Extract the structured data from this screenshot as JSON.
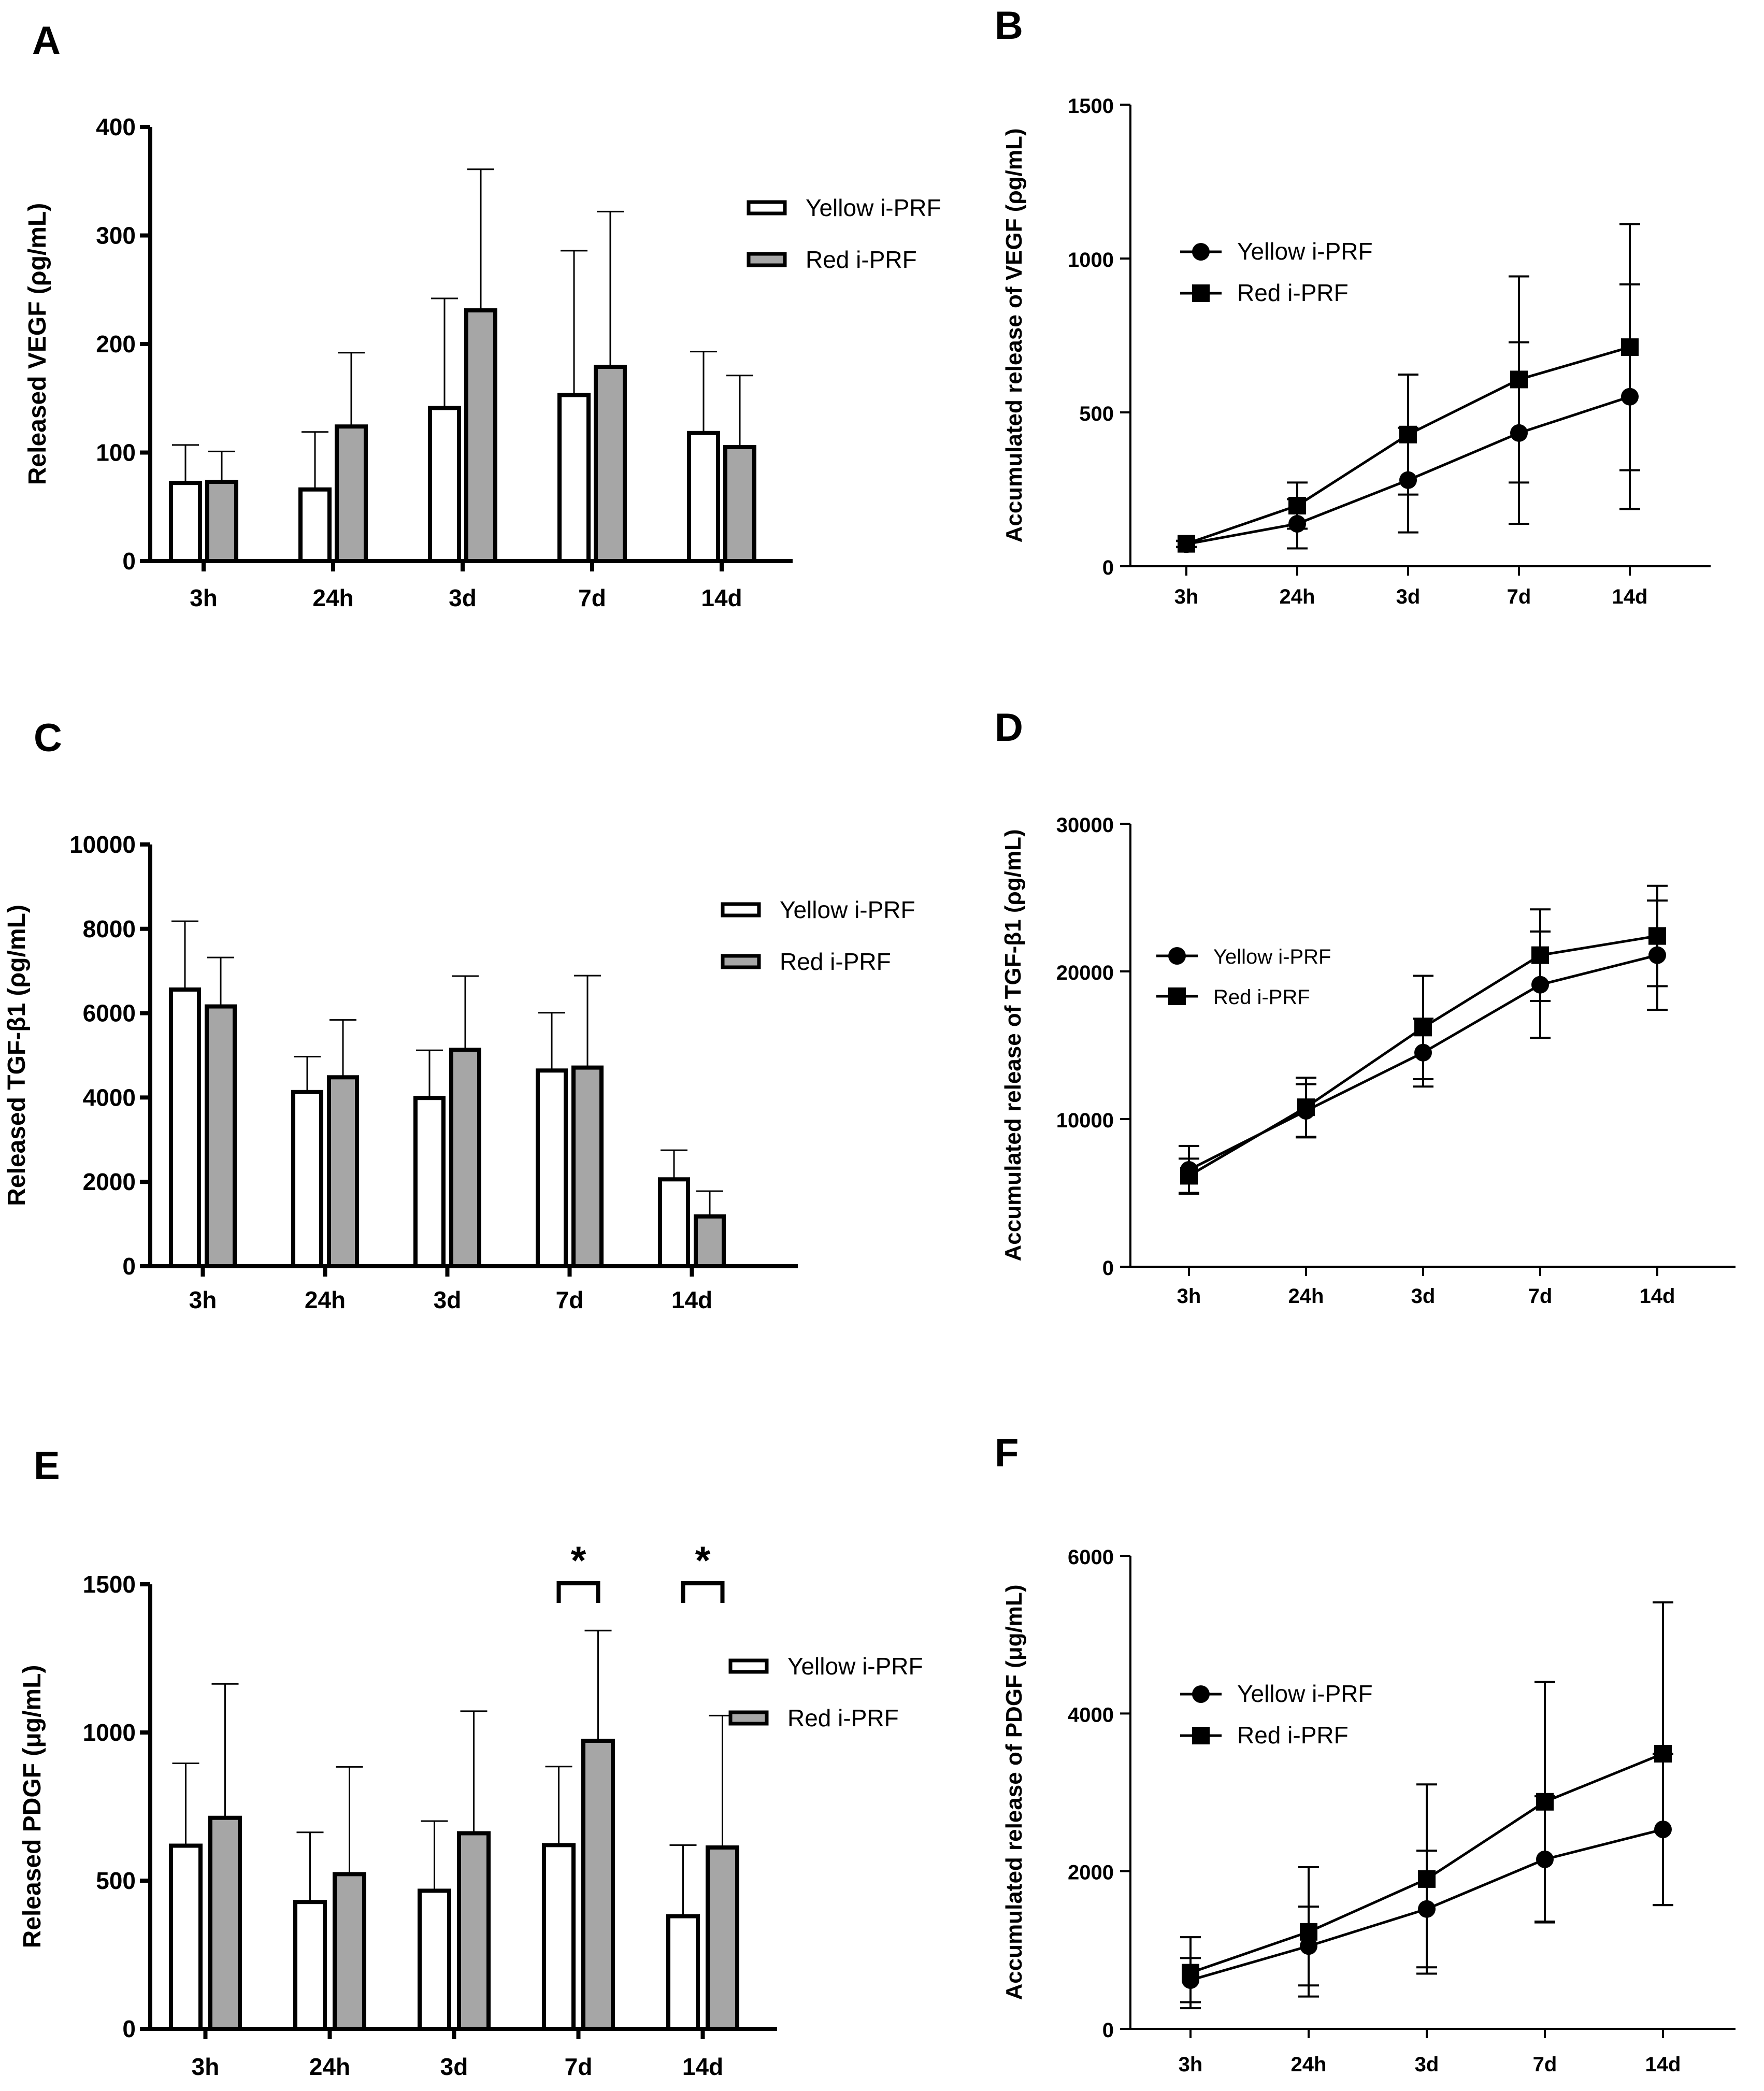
{
  "colors": {
    "yellow_fill": "#ffffff",
    "red_fill": "#a6a6a6",
    "stroke": "#000000"
  },
  "chart_data": [
    {
      "panel": "A",
      "type": "bar",
      "ylabel": "Released VEGF (ρg/mL)",
      "categories": [
        "3h",
        "24h",
        "3d",
        "7d",
        "14d"
      ],
      "ylim": [
        0,
        400
      ],
      "yticks": [
        0,
        100,
        200,
        300,
        400
      ],
      "ytick_labels": [
        "0",
        "100",
        "200",
        "300",
        "400"
      ],
      "legend": [
        "Yellow i-PRF",
        "Red i-PRF"
      ],
      "series": [
        {
          "name": "Yellow i-PRF",
          "values": [
            72,
            66,
            141,
            153,
            118
          ],
          "err": [
            35,
            53,
            101,
            133,
            75
          ]
        },
        {
          "name": "Red i-PRF",
          "values": [
            73,
            124,
            231,
            179,
            105
          ],
          "err": [
            28,
            68,
            130,
            143,
            66
          ]
        }
      ],
      "annotations": []
    },
    {
      "panel": "B",
      "type": "line",
      "ylabel": "Accumulated release of VEGF (ρg/mL)",
      "categories": [
        "3h",
        "24h",
        "3d",
        "7d",
        "14d"
      ],
      "ylim": [
        0,
        1500
      ],
      "yticks": [
        0,
        500,
        1000,
        1500
      ],
      "ytick_labels": [
        "0",
        "500",
        "1000",
        "1500"
      ],
      "legend": [
        "Yellow i-PRF",
        "Red i-PRF"
      ],
      "series": [
        {
          "name": "Yellow i-PRF",
          "marker": "circle",
          "values": [
            72,
            138,
            280,
            433,
            551
          ],
          "err": [
            10,
            80,
            170,
            295,
            365
          ]
        },
        {
          "name": "Red i-PRF",
          "marker": "square",
          "values": [
            73,
            197,
            428,
            607,
            712
          ],
          "err": [
            10,
            75,
            195,
            335,
            400
          ]
        }
      ]
    },
    {
      "panel": "C",
      "type": "bar",
      "ylabel": "Released TGF-β1 (ρg/mL)",
      "categories": [
        "3h",
        "24h",
        "3d",
        "7d",
        "14d"
      ],
      "ylim": [
        0,
        10000
      ],
      "yticks": [
        0,
        2000,
        4000,
        6000,
        8000,
        10000
      ],
      "ytick_labels": [
        "0",
        "2000",
        "4000",
        "6000",
        "8000",
        "10000"
      ],
      "legend": [
        "Yellow i-PRF",
        "Red i-PRF"
      ],
      "series": [
        {
          "name": "Yellow i-PRF",
          "values": [
            6560,
            4130,
            3990,
            4640,
            2060
          ],
          "err": [
            1620,
            840,
            1130,
            1370,
            690
          ]
        },
        {
          "name": "Red i-PRF",
          "values": [
            6160,
            4480,
            5130,
            4710,
            1180
          ],
          "err": [
            1160,
            1360,
            1750,
            2180,
            600
          ]
        }
      ],
      "annotations": []
    },
    {
      "panel": "D",
      "type": "line",
      "ylabel": "Accumulated release of TGF-β1 (ρg/mL)",
      "categories": [
        "3h",
        "24h",
        "3d",
        "7d",
        "14d"
      ],
      "ylim": [
        0,
        30000
      ],
      "yticks": [
        0,
        10000,
        20000,
        30000
      ],
      "ytick_labels": [
        "0",
        "10000",
        "20000",
        "30000"
      ],
      "legend": [
        "Yellow i-PRF",
        "Red i-PRF"
      ],
      "series": [
        {
          "name": "Yellow i-PRF",
          "marker": "circle",
          "values": [
            6560,
            10560,
            14500,
            19100,
            21100
          ],
          "err": [
            1620,
            1800,
            2300,
            3600,
            3700
          ]
        },
        {
          "name": "Red i-PRF",
          "marker": "square",
          "values": [
            6160,
            10800,
            16200,
            21100,
            22400
          ],
          "err": [
            1160,
            2000,
            3500,
            3100,
            3400
          ]
        }
      ]
    },
    {
      "panel": "E",
      "type": "bar",
      "ylabel": "Released PDGF (μg/mL)",
      "categories": [
        "3h",
        "24h",
        "3d",
        "7d",
        "14d"
      ],
      "ylim": [
        0,
        1500
      ],
      "yticks": [
        0,
        500,
        1000,
        1500
      ],
      "ytick_labels": [
        "0",
        "500",
        "1000",
        "1500"
      ],
      "legend": [
        "Yellow i-PRF",
        "Red i-PRF"
      ],
      "series": [
        {
          "name": "Yellow i-PRF",
          "values": [
            618,
            428,
            466,
            620,
            380
          ],
          "err": [
            278,
            235,
            235,
            265,
            240
          ]
        },
        {
          "name": "Red i-PRF",
          "values": [
            712,
            522,
            660,
            972,
            612
          ],
          "err": [
            452,
            362,
            412,
            372,
            445
          ]
        }
      ],
      "annotations": [
        {
          "category": "7d",
          "text": "*"
        },
        {
          "category": "14d",
          "text": "*"
        }
      ]
    },
    {
      "panel": "F",
      "type": "line",
      "ylabel": "Accumulated release of PDGF (μg/mL)",
      "categories": [
        "3h",
        "24h",
        "3d",
        "7d",
        "14d"
      ],
      "ylim": [
        0,
        6000
      ],
      "yticks": [
        0,
        2000,
        4000,
        6000
      ],
      "ytick_labels": [
        "0",
        "2000",
        "4000",
        "6000"
      ],
      "legend": [
        "Yellow i-PRF",
        "Red i-PRF"
      ],
      "series": [
        {
          "name": "Yellow i-PRF",
          "marker": "circle",
          "values": [
            618,
            1050,
            1520,
            2150,
            2530
          ],
          "err": [
            280,
            500,
            740,
            800,
            960
          ]
        },
        {
          "name": "Red i-PRF",
          "marker": "square",
          "values": [
            712,
            1230,
            1900,
            2880,
            3490
          ],
          "err": [
            450,
            820,
            1200,
            1520,
            1920
          ]
        }
      ]
    }
  ]
}
